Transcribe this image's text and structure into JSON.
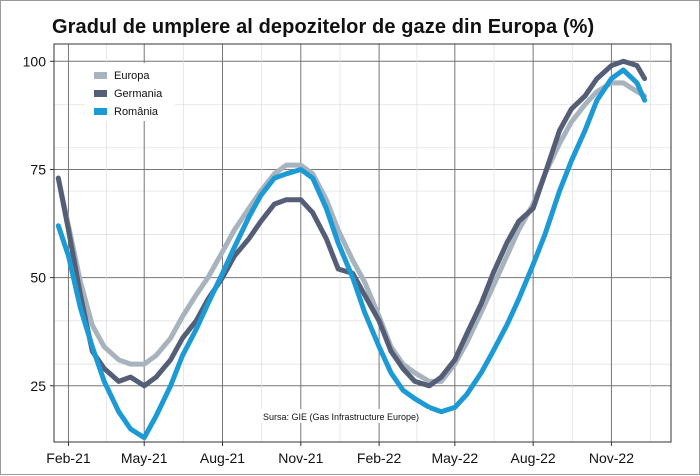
{
  "chart_data": {
    "type": "line",
    "title": "Gradul de umplere al depozitelor de gaze din Europa (%)",
    "xlabel": "",
    "ylabel": "",
    "x_range": [
      "2021-01-15",
      "2023-01-10"
    ],
    "ylim": [
      12,
      104
    ],
    "y_ticks": [
      25,
      50,
      75,
      100
    ],
    "x_ticks": [
      {
        "label": "Feb-21",
        "date": "2021-02-01"
      },
      {
        "label": "May-21",
        "date": "2021-05-01"
      },
      {
        "label": "Aug-21",
        "date": "2021-08-01"
      },
      {
        "label": "Nov-21",
        "date": "2021-11-01"
      },
      {
        "label": "Feb-22",
        "date": "2022-02-01"
      },
      {
        "label": "May-22",
        "date": "2022-05-01"
      },
      {
        "label": "Aug-22",
        "date": "2022-08-01"
      },
      {
        "label": "Nov-22",
        "date": "2022-11-01"
      }
    ],
    "grid": true,
    "legend_position": "top-left",
    "annotation": "Sursa: GIE (Gas Infrastructure Europe)",
    "series": [
      {
        "name": "Europa",
        "color": "#a7b3bd",
        "points": [
          [
            "2021-01-20",
            73
          ],
          [
            "2021-02-01",
            62
          ],
          [
            "2021-02-15",
            49
          ],
          [
            "2021-03-01",
            39
          ],
          [
            "2021-03-15",
            34
          ],
          [
            "2021-04-01",
            31
          ],
          [
            "2021-04-15",
            30
          ],
          [
            "2021-05-01",
            30
          ],
          [
            "2021-05-15",
            32
          ],
          [
            "2021-06-01",
            36
          ],
          [
            "2021-06-15",
            41
          ],
          [
            "2021-07-01",
            46
          ],
          [
            "2021-07-15",
            50
          ],
          [
            "2021-08-01",
            56
          ],
          [
            "2021-08-15",
            61
          ],
          [
            "2021-09-01",
            66
          ],
          [
            "2021-09-15",
            70
          ],
          [
            "2021-10-01",
            74
          ],
          [
            "2021-10-15",
            76
          ],
          [
            "2021-11-01",
            76
          ],
          [
            "2021-11-15",
            74
          ],
          [
            "2021-12-01",
            68
          ],
          [
            "2021-12-15",
            61
          ],
          [
            "2022-01-01",
            54
          ],
          [
            "2022-01-15",
            49
          ],
          [
            "2022-02-01",
            41
          ],
          [
            "2022-02-15",
            34
          ],
          [
            "2022-03-01",
            30
          ],
          [
            "2022-03-15",
            28
          ],
          [
            "2022-04-01",
            26
          ],
          [
            "2022-04-15",
            26
          ],
          [
            "2022-05-01",
            30
          ],
          [
            "2022-05-15",
            35
          ],
          [
            "2022-06-01",
            42
          ],
          [
            "2022-06-15",
            48
          ],
          [
            "2022-07-01",
            55
          ],
          [
            "2022-07-15",
            61
          ],
          [
            "2022-08-01",
            67
          ],
          [
            "2022-08-15",
            74
          ],
          [
            "2022-09-01",
            81
          ],
          [
            "2022-09-15",
            86
          ],
          [
            "2022-10-01",
            90
          ],
          [
            "2022-10-15",
            93
          ],
          [
            "2022-11-01",
            95
          ],
          [
            "2022-11-15",
            95
          ],
          [
            "2022-12-01",
            93
          ],
          [
            "2022-12-10",
            92
          ]
        ]
      },
      {
        "name": "Germania",
        "color": "#555e77",
        "points": [
          [
            "2021-01-20",
            73
          ],
          [
            "2021-02-01",
            61
          ],
          [
            "2021-02-15",
            46
          ],
          [
            "2021-03-01",
            33
          ],
          [
            "2021-03-15",
            29
          ],
          [
            "2021-04-01",
            26
          ],
          [
            "2021-04-15",
            27
          ],
          [
            "2021-05-01",
            25
          ],
          [
            "2021-05-15",
            27
          ],
          [
            "2021-06-01",
            31
          ],
          [
            "2021-06-15",
            36
          ],
          [
            "2021-07-01",
            40
          ],
          [
            "2021-07-15",
            45
          ],
          [
            "2021-08-01",
            50
          ],
          [
            "2021-08-15",
            55
          ],
          [
            "2021-09-01",
            59
          ],
          [
            "2021-09-15",
            63
          ],
          [
            "2021-10-01",
            67
          ],
          [
            "2021-10-15",
            68
          ],
          [
            "2021-11-01",
            68
          ],
          [
            "2021-11-15",
            65
          ],
          [
            "2021-12-01",
            59
          ],
          [
            "2021-12-15",
            52
          ],
          [
            "2022-01-01",
            51
          ],
          [
            "2022-01-15",
            46
          ],
          [
            "2022-02-01",
            40
          ],
          [
            "2022-02-15",
            33
          ],
          [
            "2022-03-01",
            29
          ],
          [
            "2022-03-15",
            26
          ],
          [
            "2022-04-01",
            25
          ],
          [
            "2022-04-15",
            27
          ],
          [
            "2022-05-01",
            31
          ],
          [
            "2022-05-15",
            37
          ],
          [
            "2022-06-01",
            44
          ],
          [
            "2022-06-15",
            51
          ],
          [
            "2022-07-01",
            58
          ],
          [
            "2022-07-15",
            63
          ],
          [
            "2022-08-01",
            66
          ],
          [
            "2022-08-15",
            74
          ],
          [
            "2022-09-01",
            84
          ],
          [
            "2022-09-15",
            89
          ],
          [
            "2022-10-01",
            92
          ],
          [
            "2022-10-15",
            96
          ],
          [
            "2022-11-01",
            99
          ],
          [
            "2022-11-15",
            100
          ],
          [
            "2022-12-01",
            99
          ],
          [
            "2022-12-10",
            96
          ]
        ]
      },
      {
        "name": "România",
        "color": "#1c9ad6",
        "points": [
          [
            "2021-01-20",
            62
          ],
          [
            "2021-02-01",
            55
          ],
          [
            "2021-02-15",
            43
          ],
          [
            "2021-03-01",
            34
          ],
          [
            "2021-03-15",
            26
          ],
          [
            "2021-04-01",
            19
          ],
          [
            "2021-04-15",
            15
          ],
          [
            "2021-05-01",
            13
          ],
          [
            "2021-05-15",
            18
          ],
          [
            "2021-06-01",
            25
          ],
          [
            "2021-06-15",
            32
          ],
          [
            "2021-07-01",
            38
          ],
          [
            "2021-07-15",
            44
          ],
          [
            "2021-08-01",
            51
          ],
          [
            "2021-08-15",
            57
          ],
          [
            "2021-09-01",
            64
          ],
          [
            "2021-09-15",
            69
          ],
          [
            "2021-10-01",
            73
          ],
          [
            "2021-10-15",
            74
          ],
          [
            "2021-11-01",
            75
          ],
          [
            "2021-11-15",
            73
          ],
          [
            "2021-12-01",
            66
          ],
          [
            "2021-12-15",
            58
          ],
          [
            "2022-01-01",
            50
          ],
          [
            "2022-01-15",
            42
          ],
          [
            "2022-02-01",
            34
          ],
          [
            "2022-02-15",
            28
          ],
          [
            "2022-03-01",
            24
          ],
          [
            "2022-03-15",
            22
          ],
          [
            "2022-04-01",
            20
          ],
          [
            "2022-04-15",
            19
          ],
          [
            "2022-05-01",
            20
          ],
          [
            "2022-05-15",
            23
          ],
          [
            "2022-06-01",
            28
          ],
          [
            "2022-06-15",
            33
          ],
          [
            "2022-07-01",
            39
          ],
          [
            "2022-07-15",
            45
          ],
          [
            "2022-08-01",
            53
          ],
          [
            "2022-08-15",
            60
          ],
          [
            "2022-09-01",
            70
          ],
          [
            "2022-09-15",
            77
          ],
          [
            "2022-10-01",
            84
          ],
          [
            "2022-10-15",
            91
          ],
          [
            "2022-11-01",
            96
          ],
          [
            "2022-11-15",
            98
          ],
          [
            "2022-12-01",
            95
          ],
          [
            "2022-12-10",
            91
          ]
        ]
      }
    ]
  }
}
